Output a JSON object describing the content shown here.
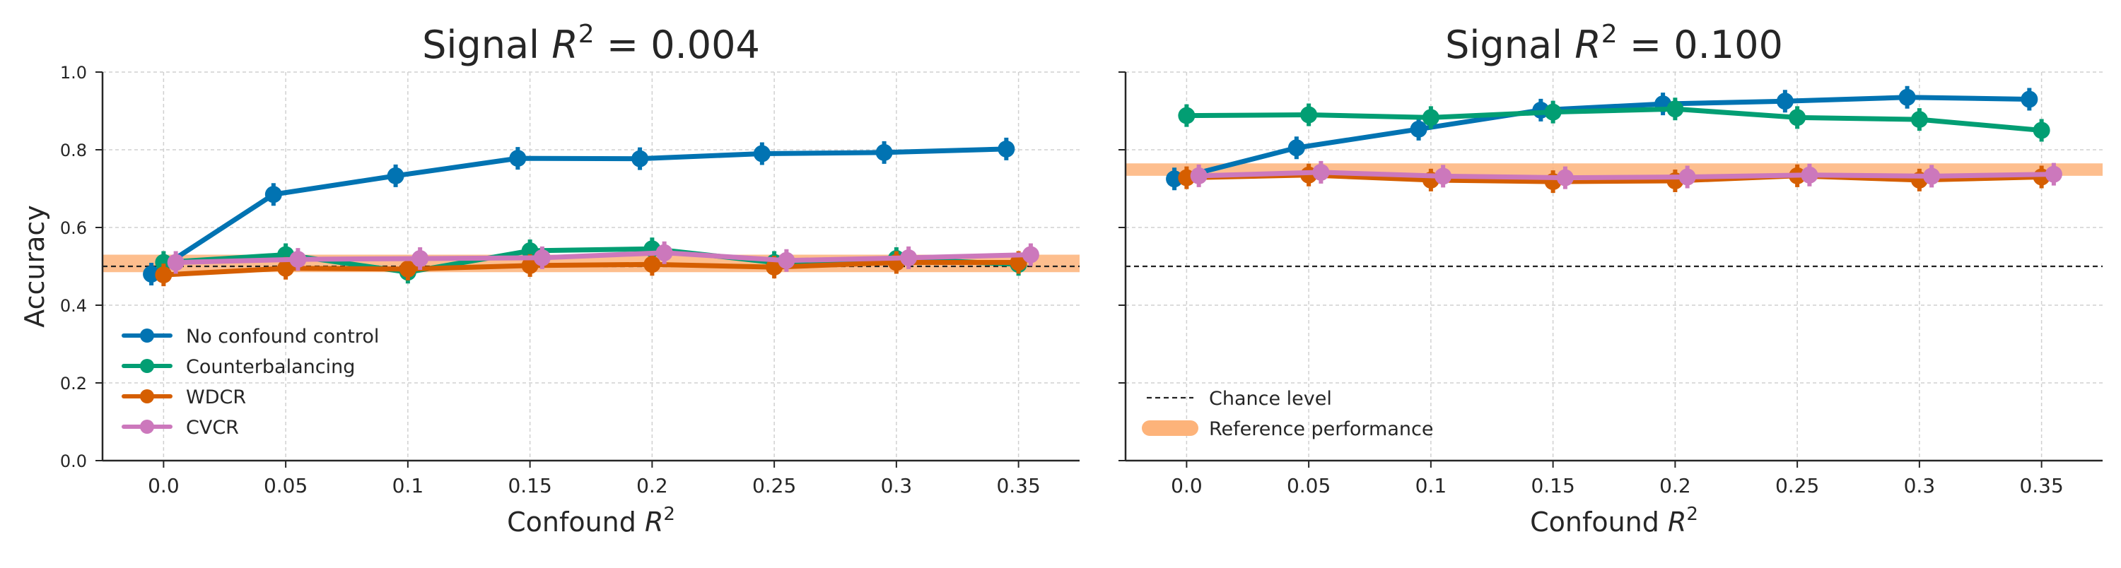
{
  "chart_data": [
    {
      "type": "line",
      "title_prefix": "Signal",
      "title_value": "= 0.004",
      "title_sym": "R",
      "title_sup": "2",
      "xlabel_prefix": "Confound",
      "xlabel_sym": "R",
      "xlabel_sup": "2",
      "ylabel": "Accuracy",
      "ylim": [
        0.0,
        1.0
      ],
      "xlim": [
        -0.025,
        0.375
      ],
      "grid": true,
      "xticks": [
        0.0,
        0.05,
        0.1,
        0.15,
        0.2,
        0.25,
        0.3,
        0.35
      ],
      "xtick_labels": [
        "0.0",
        "0.05",
        "0.1",
        "0.15",
        "0.2",
        "0.25",
        "0.3",
        "0.35"
      ],
      "yticks": [
        0.0,
        0.2,
        0.4,
        0.6,
        0.8,
        1.0
      ],
      "ytick_labels": [
        "0.0",
        "0.2",
        "0.4",
        "0.6",
        "0.8",
        "1.0"
      ],
      "chance_level": 0.5,
      "reference_band": [
        0.485,
        0.53
      ],
      "legend": "lower-left",
      "legend_entries": [
        "No confound control",
        "Counterbalancing",
        "WDCR",
        "CVCR"
      ],
      "series": [
        {
          "name": "No confound control",
          "color": "#0173b2",
          "offset": -0.005,
          "x": [
            0.0,
            0.05,
            0.1,
            0.15,
            0.2,
            0.25,
            0.3,
            0.35
          ],
          "values": [
            0.48,
            0.685,
            0.733,
            0.778,
            0.777,
            0.79,
            0.793,
            0.802
          ]
        },
        {
          "name": "Counterbalancing",
          "color": "#029e73",
          "offset": 0.0,
          "x": [
            0.0,
            0.05,
            0.1,
            0.15,
            0.2,
            0.25,
            0.3,
            0.35
          ],
          "values": [
            0.51,
            0.53,
            0.485,
            0.54,
            0.545,
            0.51,
            0.52,
            0.505
          ]
        },
        {
          "name": "WDCR",
          "color": "#d55e00",
          "offset": 0.0,
          "x": [
            0.0,
            0.05,
            0.1,
            0.15,
            0.2,
            0.25,
            0.3,
            0.35
          ],
          "values": [
            0.478,
            0.495,
            0.493,
            0.502,
            0.505,
            0.498,
            0.51,
            0.51
          ]
        },
        {
          "name": "CVCR",
          "color": "#cc78bc",
          "offset": 0.005,
          "x": [
            0.0,
            0.05,
            0.1,
            0.15,
            0.2,
            0.25,
            0.3,
            0.35
          ],
          "values": [
            0.51,
            0.518,
            0.52,
            0.522,
            0.535,
            0.515,
            0.522,
            0.53
          ]
        }
      ]
    },
    {
      "type": "line",
      "title_prefix": "Signal",
      "title_value": "= 0.100",
      "title_sym": "R",
      "title_sup": "2",
      "xlabel_prefix": "Confound",
      "xlabel_sym": "R",
      "xlabel_sup": "2",
      "ylabel": "",
      "ylim": [
        0.0,
        1.0
      ],
      "xlim": [
        -0.025,
        0.375
      ],
      "grid": true,
      "xticks": [
        0.0,
        0.05,
        0.1,
        0.15,
        0.2,
        0.25,
        0.3,
        0.35
      ],
      "xtick_labels": [
        "0.0",
        "0.05",
        "0.1",
        "0.15",
        "0.2",
        "0.25",
        "0.3",
        "0.35"
      ],
      "yticks": [
        0.0,
        0.2,
        0.4,
        0.6,
        0.8,
        1.0
      ],
      "ytick_labels": [],
      "chance_level": 0.5,
      "reference_band": [
        0.733,
        0.765
      ],
      "legend": "lower-left",
      "legend_entries": [
        "Chance level",
        "Reference performance"
      ],
      "series": [
        {
          "name": "No confound control",
          "color": "#0173b2",
          "offset": -0.005,
          "x": [
            0.0,
            0.05,
            0.1,
            0.15,
            0.2,
            0.25,
            0.3,
            0.35
          ],
          "values": [
            0.725,
            0.805,
            0.853,
            0.902,
            0.918,
            0.925,
            0.935,
            0.93
          ]
        },
        {
          "name": "Counterbalancing",
          "color": "#029e73",
          "offset": 0.0,
          "x": [
            0.0,
            0.05,
            0.1,
            0.15,
            0.2,
            0.25,
            0.3,
            0.35
          ],
          "values": [
            0.888,
            0.89,
            0.883,
            0.897,
            0.905,
            0.883,
            0.878,
            0.85
          ]
        },
        {
          "name": "WDCR",
          "color": "#d55e00",
          "offset": 0.0,
          "x": [
            0.0,
            0.05,
            0.1,
            0.15,
            0.2,
            0.25,
            0.3,
            0.35
          ],
          "values": [
            0.728,
            0.735,
            0.722,
            0.718,
            0.72,
            0.733,
            0.722,
            0.73
          ]
        },
        {
          "name": "CVCR",
          "color": "#cc78bc",
          "offset": 0.005,
          "x": [
            0.0,
            0.05,
            0.1,
            0.15,
            0.2,
            0.25,
            0.3,
            0.35
          ],
          "values": [
            0.733,
            0.742,
            0.732,
            0.728,
            0.73,
            0.735,
            0.732,
            0.737
          ]
        }
      ]
    }
  ],
  "colors": {
    "reference_band": "#fdb37a",
    "chance_line": "#222222",
    "grid": "#d0d0d0",
    "axis": "#262626"
  }
}
